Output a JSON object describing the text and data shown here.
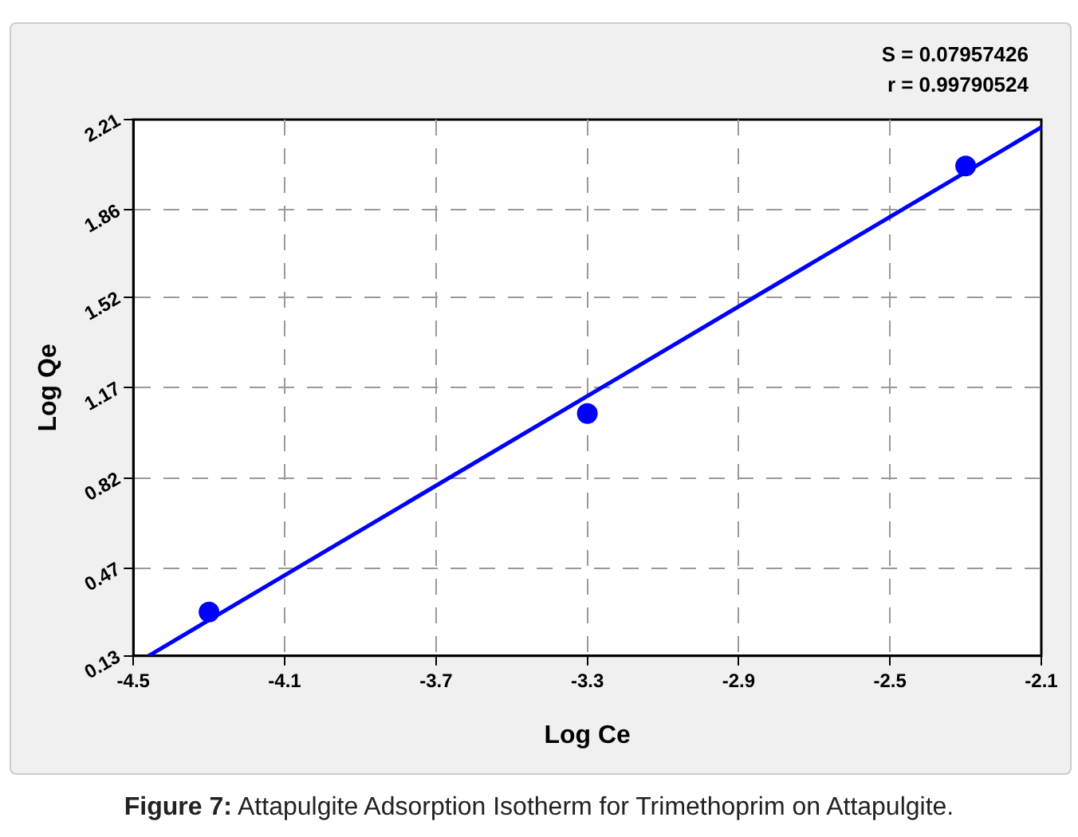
{
  "chart_data": {
    "type": "scatter",
    "xlabel": "Log Ce",
    "ylabel": "Log Qe",
    "series": [
      {
        "color": "#0000ff",
        "marker": "circle",
        "x": [
          -4.3,
          -3.3,
          -2.3
        ],
        "values": [
          0.3,
          1.07,
          2.03
        ]
      },
      {
        "type": "line",
        "color": "#0000ff",
        "marker": "none",
        "line_style": "solid",
        "x": [
          -4.46,
          -2.1
        ],
        "values": [
          0.13,
          2.18
        ]
      }
    ],
    "xlim": [
      -4.5,
      -2.1
    ],
    "xticks": [
      -4.5,
      -4.1,
      -3.7,
      -3.3,
      -2.9,
      -2.5,
      -2.1
    ],
    "ylim": [
      0.13,
      2.21
    ],
    "yticks": [
      0.13,
      0.47,
      0.82,
      1.17,
      1.52,
      1.86,
      2.21
    ],
    "grid": true,
    "legend": false,
    "annotations": [
      "S = 0.07957426",
      "r = 0.99790524",
      "Figure 7: Attapulgite Adsorption Isotherm for Trimethoprim on Attapulgite."
    ]
  }
}
